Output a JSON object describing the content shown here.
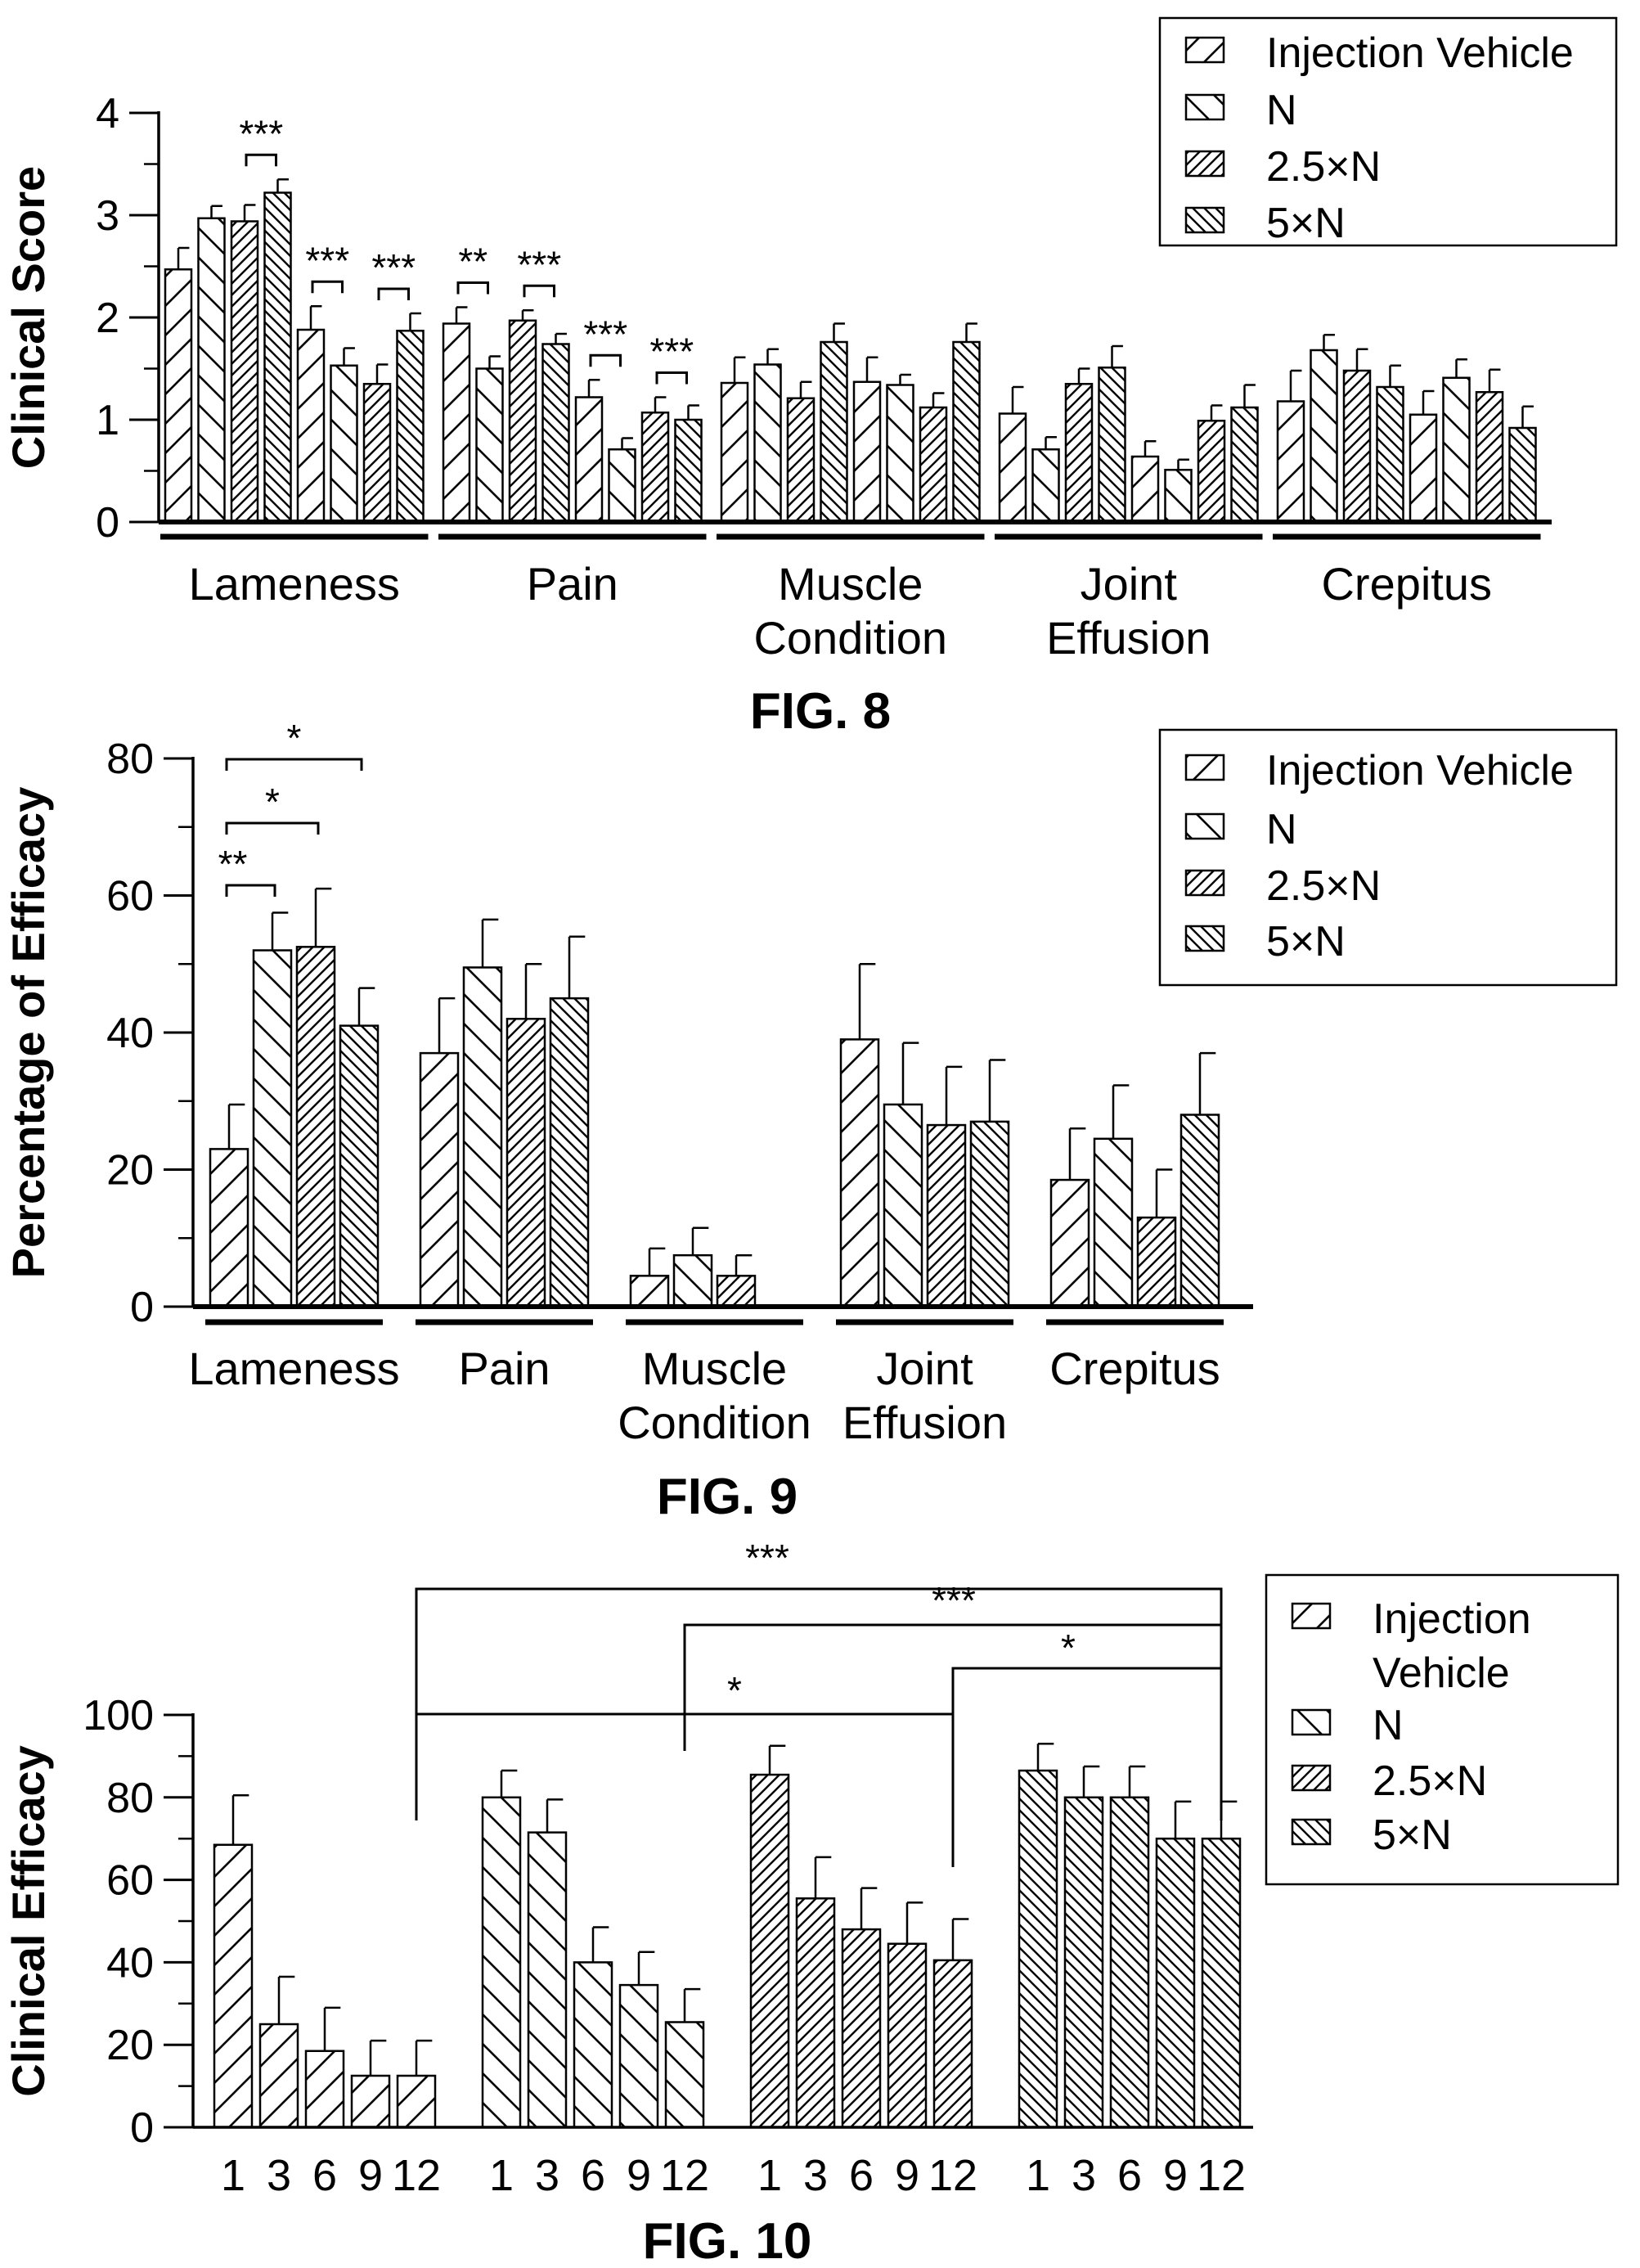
{
  "chart_data": [
    {
      "figure_label": "FIG. 8",
      "type": "bar",
      "ylabel": "Clinical Score",
      "ylim": [
        0,
        4
      ],
      "yticks": [
        0,
        1,
        2,
        3,
        4
      ],
      "grid": false,
      "legend_position": "top-right",
      "groups": [
        "Lameness",
        "Pain",
        "Muscle Condition",
        "Joint Effusion",
        "Crepitus"
      ],
      "group_label_lines": [
        [
          "Lameness"
        ],
        [
          "Pain"
        ],
        [
          "Muscle",
          "Condition"
        ],
        [
          "Joint",
          "Effusion"
        ],
        [
          "Crepitus"
        ]
      ],
      "series": [
        {
          "name": "Injection Vehicle",
          "values": [
            [
              2.47,
              1.88
            ],
            [
              1.94,
              1.22
            ],
            [
              1.36,
              1.37
            ],
            [
              1.06,
              0.64
            ],
            [
              1.18,
              1.05
            ]
          ],
          "errors": [
            [
              0.21,
              0.23
            ],
            [
              0.16,
              0.17
            ],
            [
              0.25,
              0.24
            ],
            [
              0.26,
              0.15
            ],
            [
              0.3,
              0.23
            ]
          ]
        },
        {
          "name": "N",
          "values": [
            [
              2.97,
              1.53
            ],
            [
              1.5,
              0.71
            ],
            [
              1.54,
              1.34
            ],
            [
              0.71,
              0.51
            ],
            [
              1.68,
              1.41
            ]
          ],
          "errors": [
            [
              0.12,
              0.17
            ],
            [
              0.12,
              0.11
            ],
            [
              0.15,
              0.1
            ],
            [
              0.12,
              0.1
            ],
            [
              0.15,
              0.18
            ]
          ]
        },
        {
          "name": "2.5×N",
          "values": [
            [
              2.94,
              1.35
            ],
            [
              1.97,
              1.07
            ],
            [
              1.21,
              1.12
            ],
            [
              1.35,
              0.99
            ],
            [
              1.48,
              1.27
            ]
          ],
          "errors": [
            [
              0.16,
              0.19
            ],
            [
              0.1,
              0.15
            ],
            [
              0.16,
              0.14
            ],
            [
              0.15,
              0.15
            ],
            [
              0.21,
              0.22
            ]
          ]
        },
        {
          "name": "5×N",
          "values": [
            [
              3.22,
              1.87
            ],
            [
              1.74,
              1.0
            ],
            [
              1.76,
              1.76
            ],
            [
              1.51,
              1.12
            ],
            [
              1.32,
              0.92
            ]
          ],
          "errors": [
            [
              0.13,
              0.17
            ],
            [
              0.1,
              0.14
            ],
            [
              0.18,
              0.18
            ],
            [
              0.21,
              0.22
            ],
            [
              0.21,
              0.21
            ]
          ]
        }
      ],
      "annotations": [
        {
          "text": "***",
          "bar_from": 2,
          "bar_to": 3
        },
        {
          "text": "***",
          "bar_from": 4,
          "bar_to": 5
        },
        {
          "text": "***",
          "bar_from": 6,
          "bar_to": 7
        },
        {
          "text": "**",
          "bar_from": 8,
          "bar_to": 9
        },
        {
          "text": "***",
          "bar_from": 10,
          "bar_to": 11
        },
        {
          "text": "***",
          "bar_from": 12,
          "bar_to": 13
        },
        {
          "text": "***",
          "bar_from": 14,
          "bar_to": 15
        }
      ]
    },
    {
      "figure_label": "FIG. 9",
      "type": "bar",
      "ylabel": "Percentage of Efficacy",
      "ylim": [
        0,
        80
      ],
      "yticks": [
        0,
        20,
        40,
        60,
        80
      ],
      "grid": false,
      "legend_position": "top-right",
      "groups": [
        "Lameness",
        "Pain",
        "Muscle Condition",
        "Joint Effusion",
        "Crepitus"
      ],
      "group_label_lines": [
        [
          "Lameness"
        ],
        [
          "Pain"
        ],
        [
          "Muscle",
          "Condition"
        ],
        [
          "Joint",
          "Effusion"
        ],
        [
          "Crepitus"
        ]
      ],
      "series": [
        {
          "name": "Injection Vehicle",
          "values": [
            23,
            37,
            4.5,
            39,
            18.5
          ],
          "errors": [
            6.5,
            8,
            4,
            11,
            7.5
          ]
        },
        {
          "name": "N",
          "values": [
            52,
            49.5,
            7.5,
            29.5,
            24.5
          ],
          "errors": [
            5.5,
            7,
            4,
            9,
            7.8
          ]
        },
        {
          "name": "2.5×N",
          "values": [
            52.5,
            42,
            4.5,
            26.5,
            13
          ],
          "errors": [
            8.5,
            8,
            3,
            8.5,
            7
          ]
        },
        {
          "name": "5×N",
          "values": [
            41,
            45,
            0,
            27,
            28
          ],
          "errors": [
            5.5,
            9,
            0,
            9,
            9
          ]
        }
      ],
      "annotations": [
        {
          "text": "**",
          "bar_from": 0,
          "bar_to": 1
        },
        {
          "text": "*",
          "bar_from": 0,
          "bar_to": 2
        },
        {
          "text": "*",
          "bar_from": 0,
          "bar_to": 3
        }
      ]
    },
    {
      "figure_label": "FIG. 10",
      "type": "bar",
      "ylabel": "Clinical Efficacy",
      "ylim": [
        0,
        100
      ],
      "yticks": [
        0,
        20,
        40,
        60,
        80,
        100
      ],
      "grid": false,
      "legend_position": "right",
      "categories": [
        "1",
        "3",
        "6",
        "9",
        "12"
      ],
      "series": [
        {
          "name": "Injection Vehicle",
          "legend_lines": [
            "Injection",
            "Vehicle"
          ],
          "values": [
            68.5,
            25,
            18.5,
            12.5,
            12.5
          ],
          "errors": [
            12,
            11.5,
            10.5,
            8.5,
            8.5
          ]
        },
        {
          "name": "N",
          "legend_lines": [
            "N"
          ],
          "values": [
            80,
            71.5,
            40,
            34.5,
            25.5
          ],
          "errors": [
            6.5,
            8,
            8.5,
            8,
            8
          ]
        },
        {
          "name": "2.5×N",
          "legend_lines": [
            "2.5×N"
          ],
          "values": [
            85.5,
            55.5,
            48,
            44.5,
            40.5
          ],
          "errors": [
            7,
            10,
            10,
            10,
            10
          ]
        },
        {
          "name": "5×N",
          "legend_lines": [
            "5×N"
          ],
          "values": [
            86.5,
            80,
            80,
            70,
            70
          ],
          "errors": [
            6.5,
            7.5,
            7.5,
            9,
            9
          ]
        }
      ],
      "annotations": [
        {
          "text": "***",
          "groups": [
            0,
            3
          ]
        },
        {
          "text": "***",
          "groups": [
            1,
            3
          ]
        },
        {
          "text": "*",
          "groups": [
            2,
            3
          ]
        },
        {
          "text": "*",
          "groups": [
            0,
            2
          ]
        }
      ]
    }
  ]
}
